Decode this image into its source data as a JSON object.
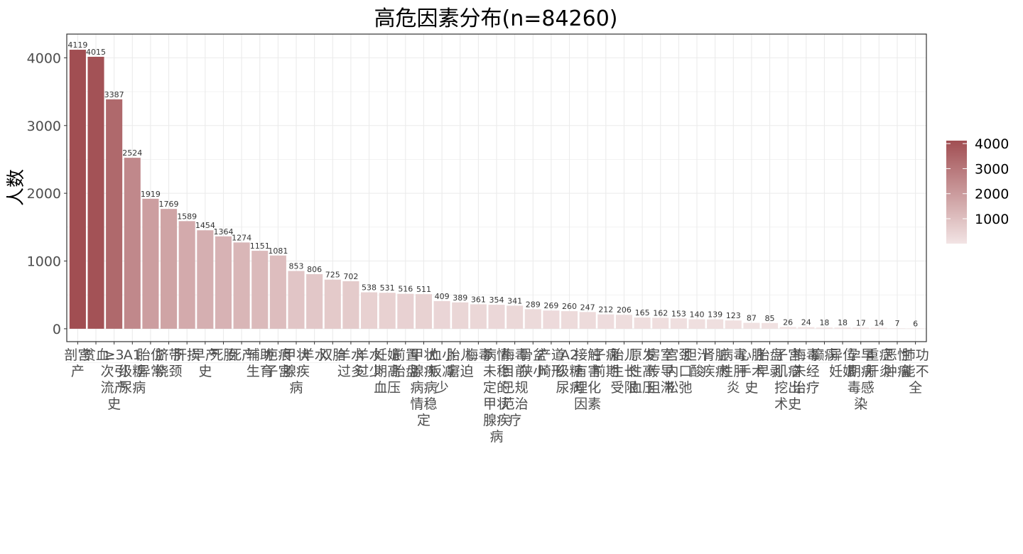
{
  "chart_data": {
    "type": "bar",
    "title": "高危因素分布(n=84260)",
    "xlabel": "",
    "ylabel": "人数",
    "ylim": [
      -190,
      4350
    ],
    "yticks": [
      0,
      1000,
      2000,
      3000,
      4000
    ],
    "grid": true,
    "legend_position": "right",
    "legend_ticks": [
      1000,
      2000,
      3000,
      4000
    ],
    "legend_range": [
      6,
      4119
    ],
    "colors": {
      "low": "#f2e4e4",
      "high": "#a14e52",
      "grid": "#ebebeb",
      "border": "#333333"
    },
    "categories": [
      "剖宫产",
      "贫血",
      "≥3次引流产史",
      "A1级糖尿病",
      "胎位异常",
      "脐带绕颈",
      "肝损",
      "早产史",
      "死胎",
      "死产",
      "辅助生育",
      "疤痕子宫",
      "甲状腺疾病",
      "羊水",
      "双胎",
      "羊水过多",
      "羊水过少",
      "妊娠期高血压",
      "前置胎盘",
      "甲状腺疾病病情稳定",
      "血小板减少",
      "胎儿窘迫",
      "梅毒",
      "病情未稳定的甲状腺疾病",
      "梅毒目前已规范治疗",
      "骨盆狭小",
      "产道畸形",
      "A2级糖尿病",
      "接触有害理化因素",
      "子痫前期",
      "胎儿生长受限",
      "原发性高血压",
      "房室传导阻滞",
      "宫颈内口松弛",
      "胆汁酸",
      "肾脏疾病",
      "病毒性肝炎",
      "心脏手术史",
      "胎盘早剥",
      "子宫肌瘤挖出术史",
      "梅毒未经治疗",
      "癫痫",
      "异位妊娠",
      "孕早期病毒感染",
      "重症肝炎",
      "恶性肿瘤",
      "肺功能不全"
    ],
    "values": [
      4119,
      4015,
      3387,
      2524,
      1919,
      1769,
      1589,
      1454,
      1364,
      1274,
      1151,
      1081,
      853,
      806,
      725,
      702,
      538,
      531,
      516,
      511,
      409,
      389,
      361,
      354,
      341,
      289,
      269,
      260,
      247,
      212,
      206,
      165,
      162,
      153,
      140,
      139,
      123,
      87,
      85,
      26,
      24,
      18,
      18,
      17,
      14,
      7,
      6
    ]
  }
}
